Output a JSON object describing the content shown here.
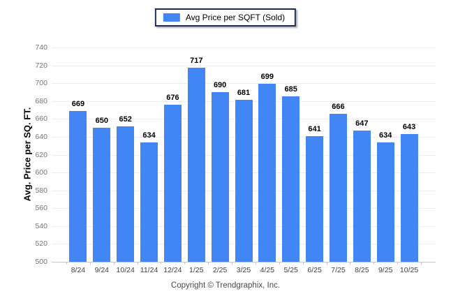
{
  "legend": {
    "label": "Avg Price per SQFT (Sold)",
    "swatch_color": "#4285f4",
    "border_color": "#1e2b55"
  },
  "y_axis_title": "Avg. Price per SQ. FT.",
  "footer": "Copyright © Trendgraphix, Inc.",
  "colors": {
    "bar": "#4285f4",
    "gridline": "#ededed",
    "axis_line": "#c8c8c8",
    "ytick_text": "#757575",
    "xtick_text": "#404040",
    "value_text": "#000000"
  },
  "chart_data": {
    "type": "bar",
    "title": "",
    "categories": [
      "8/24",
      "9/24",
      "10/24",
      "11/24",
      "12/24",
      "1/25",
      "2/25",
      "3/25",
      "4/25",
      "5/25",
      "6/25",
      "7/25",
      "8/25",
      "9/25",
      "10/25"
    ],
    "series": [
      {
        "name": "Avg Price per SQFT (Sold)",
        "color": "#4285f4",
        "values": [
          669,
          650,
          652,
          634,
          676,
          717,
          690,
          681,
          699,
          685,
          641,
          666,
          647,
          634,
          643
        ]
      }
    ],
    "xlabel": "",
    "ylabel": "Avg. Price per SQ. FT.",
    "ylim": [
      500,
      740
    ],
    "ytick_step": 20,
    "grid": "horizontal",
    "legend_position": "top",
    "value_labels": true
  }
}
